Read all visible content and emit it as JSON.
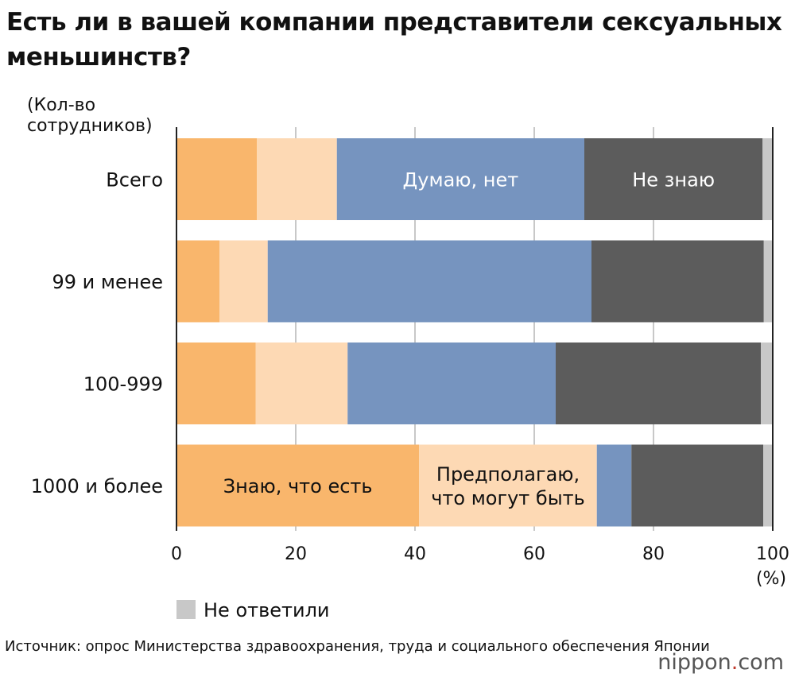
{
  "title": "Есть ли в вашей компании представители сексуальных меньшинств?",
  "source": "Источник: опрос Министерства здравоохранения, труда и социального обеспечения Японии",
  "logo": {
    "name": "nippon",
    "dot": ".",
    "tld": "com"
  },
  "chart_data": {
    "type": "bar",
    "orientation": "horizontal",
    "stacked": true,
    "title": "Есть ли в вашей компании представители сексуальных меньшинств?",
    "ylabel_line1": "(Кол-во",
    "ylabel_line2": "сотрудников)",
    "xlabel": "(%)",
    "xlim": [
      0,
      100
    ],
    "xticks": [
      "0",
      "20",
      "40",
      "60",
      "80",
      "100"
    ],
    "grid": true,
    "categories": [
      "Всего",
      "99 и менее",
      "100-999",
      "1000 и более"
    ],
    "series": [
      {
        "name": "Знаю, что есть",
        "color": "#f9b66c",
        "label_lines": [
          "Знаю, что есть"
        ],
        "label_row": 3,
        "label_color": "#111",
        "values": [
          13.5,
          7.2,
          13.3,
          40.7
        ]
      },
      {
        "name": "Предполагаю, что могут быть",
        "color": "#fdd9b4",
        "label_lines": [
          "Предполагаю,",
          "что могут быть"
        ],
        "label_row": 3,
        "label_color": "#111",
        "values": [
          13.4,
          8.1,
          15.4,
          29.8
        ]
      },
      {
        "name": "Думаю, нет",
        "color": "#7694bf",
        "label_lines": [
          "Думаю, нет"
        ],
        "label_row": 0,
        "label_color": "#fff",
        "values": [
          41.5,
          54.3,
          34.9,
          5.8
        ]
      },
      {
        "name": "Не знаю",
        "color": "#5c5c5c",
        "label_lines": [
          "Не знаю"
        ],
        "label_row": 0,
        "label_color": "#fff",
        "values": [
          29.9,
          28.9,
          34.4,
          22.1
        ]
      },
      {
        "name": "Не ответили",
        "color": "#c8c8c8",
        "label_lines": [],
        "label_row": -1,
        "label_color": "#111",
        "values": [
          1.7,
          1.5,
          2.0,
          1.6
        ]
      }
    ],
    "legend": {
      "label": "Не ответили",
      "placement": "bottom-left"
    }
  }
}
